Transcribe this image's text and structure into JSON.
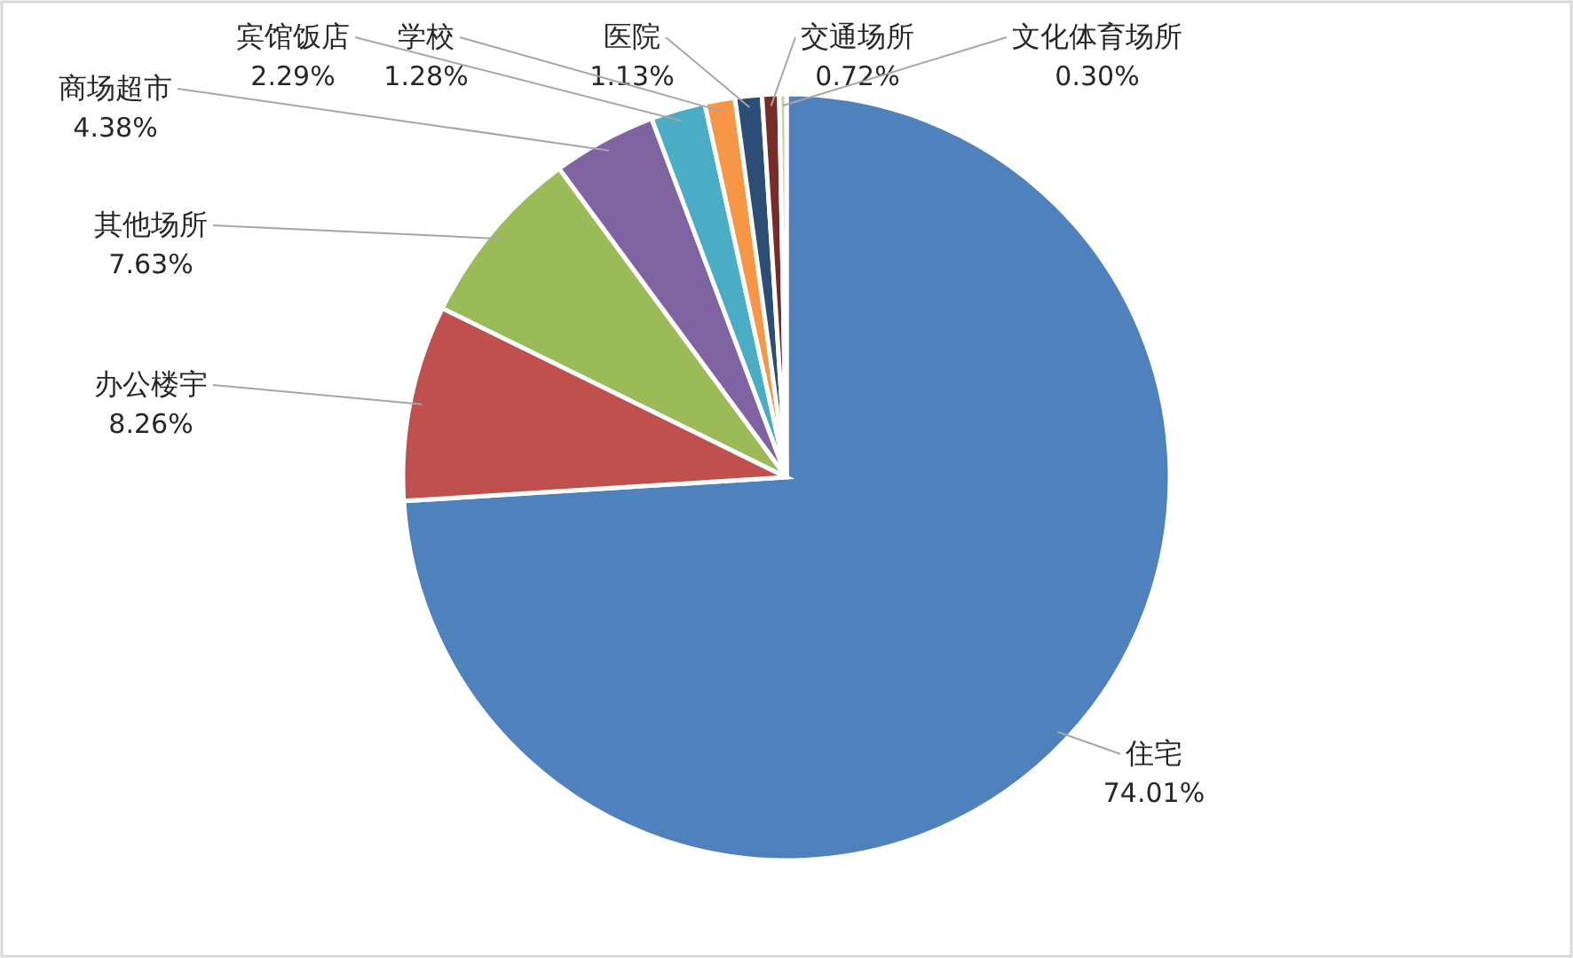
{
  "chart_data": {
    "type": "pie",
    "categories": [
      "住宅",
      "办公楼宇",
      "其他场所",
      "商场超市",
      "宾馆饭店",
      "学校",
      "医院",
      "交通场所",
      "文化体育场所"
    ],
    "values": [
      74.01,
      8.26,
      7.63,
      4.38,
      2.29,
      1.28,
      1.13,
      0.72,
      0.3
    ],
    "colors": [
      "#4f81bd",
      "#c0504d",
      "#9bbb59",
      "#8064a2",
      "#4bacc6",
      "#f79646",
      "#2c4d75",
      "#772c2a",
      "#c3d69b"
    ],
    "value_labels": [
      "74.01%",
      "8.26%",
      "7.63%",
      "4.38%",
      "2.29%",
      "1.28%",
      "1.13%",
      "0.72%",
      "0.30%"
    ]
  }
}
